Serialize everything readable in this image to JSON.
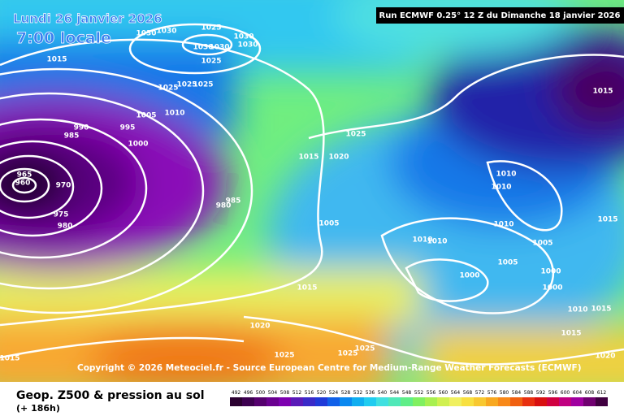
{
  "header": {
    "date": "Lundi 26 janvier 2026",
    "time": "7:00 locale",
    "run": "Run ECMWF 0.25° 12 Z du Dimanche 18 janvier 2026"
  },
  "map": {
    "copyright": "Copyright © 2026 Meteociel.fr - Source European Centre for Medium-Range Weather Forecasts (ECMWF)",
    "isobar_labels": [
      1015,
      1030,
      1030,
      1025,
      1030,
      1030,
      1025,
      1030,
      1030,
      1025,
      1025,
      1025,
      1010,
      1005,
      1000,
      995,
      990,
      985,
      965,
      960,
      970,
      975,
      980,
      985,
      980,
      1025,
      1015,
      1020,
      1005,
      1010,
      1010,
      1010,
      1010,
      1010,
      1005,
      1005,
      1000,
      1000,
      1000,
      1010,
      1015,
      1015,
      1015,
      1015,
      1015,
      1020,
      1025,
      1025,
      1025,
      1020,
      1015
    ]
  },
  "legend": {
    "title": "Geop. Z500 & pression au sol",
    "lead": "(+ 186h)",
    "scale": [
      492,
      496,
      500,
      504,
      508,
      512,
      516,
      520,
      524,
      528,
      532,
      536,
      540,
      544,
      548,
      552,
      556,
      560,
      564,
      568,
      572,
      576,
      580,
      584,
      588,
      592,
      596,
      600,
      604,
      608,
      612
    ],
    "colors": [
      "#2b0030",
      "#3d0050",
      "#55006e",
      "#6a0090",
      "#7d00b0",
      "#5a1ab8",
      "#3a2ac8",
      "#1f3ad8",
      "#1060e8",
      "#0a88f0",
      "#10aef0",
      "#20ccf0",
      "#40e0e0",
      "#50e8b8",
      "#60ee88",
      "#80f060",
      "#a8f050",
      "#d0f050",
      "#f0f060",
      "#f8e040",
      "#f8c830",
      "#f8a820",
      "#f88818",
      "#f06010",
      "#e83010",
      "#d81010",
      "#d00040",
      "#c00080",
      "#a000a0",
      "#700070",
      "#400040"
    ]
  }
}
